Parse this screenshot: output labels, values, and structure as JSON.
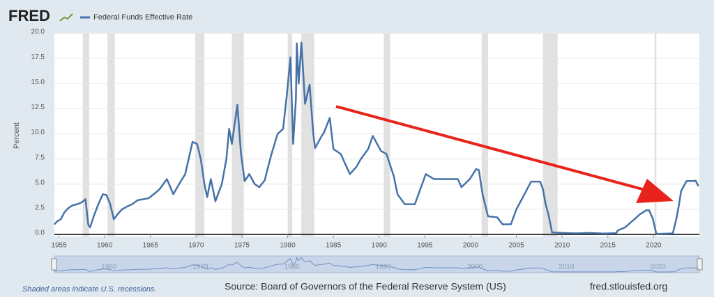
{
  "logo": "FRED",
  "chart_data": {
    "type": "line",
    "y_label": "Percent",
    "xlim": [
      1954.5,
      2025
    ],
    "xticks": [
      1955,
      1960,
      1965,
      1970,
      1975,
      1980,
      1985,
      1990,
      1995,
      2000,
      2005,
      2010,
      2015,
      2020
    ],
    "ylim": [
      0,
      20
    ],
    "yticks": [
      {
        "value": 0,
        "label": "0.0"
      },
      {
        "value": 2.5,
        "label": "2.5"
      },
      {
        "value": 5,
        "label": "5.0"
      },
      {
        "value": 7.5,
        "label": "7.5"
      },
      {
        "value": 10,
        "label": "10.0"
      },
      {
        "value": 12.5,
        "label": "12.5"
      },
      {
        "value": 15,
        "label": "15.0"
      },
      {
        "value": 17.5,
        "label": "17.5"
      },
      {
        "value": 20,
        "label": "20.0"
      }
    ],
    "grid": true,
    "recessions": [
      [
        1957.6,
        1958.3
      ],
      [
        1960.3,
        1961.1
      ],
      [
        1969.9,
        1970.9
      ],
      [
        1973.9,
        1975.2
      ],
      [
        1980.0,
        1980.5
      ],
      [
        1981.5,
        1982.9
      ],
      [
        1990.5,
        1991.2
      ],
      [
        2001.2,
        2001.9
      ],
      [
        2007.9,
        2009.5
      ],
      [
        2020.1,
        2020.3
      ]
    ],
    "series": [
      {
        "name": "Federal Funds Effective Rate",
        "color": "#4572a7",
        "x": [
          1954.5,
          1954.8,
          1955.2,
          1955.6,
          1956.0,
          1956.5,
          1957.0,
          1957.5,
          1957.9,
          1958.2,
          1958.4,
          1958.8,
          1959.3,
          1959.8,
          1960.2,
          1960.6,
          1961.0,
          1961.4,
          1961.9,
          1962.5,
          1963.0,
          1963.6,
          1964.2,
          1964.8,
          1965.5,
          1966.0,
          1966.8,
          1967.5,
          1968.0,
          1968.8,
          1969.6,
          1970.1,
          1970.5,
          1970.9,
          1971.2,
          1971.6,
          1972.1,
          1972.8,
          1973.3,
          1973.6,
          1973.9,
          1974.5,
          1974.9,
          1975.3,
          1975.8,
          1976.4,
          1976.9,
          1977.5,
          1977.8,
          1978.2,
          1978.9,
          1979.5,
          1979.9,
          1980.3,
          1980.6,
          1980.9,
          1981.0,
          1981.2,
          1981.5,
          1981.9,
          1982.4,
          1982.8,
          1983.0,
          1983.6,
          1984.0,
          1984.6,
          1985.0,
          1985.8,
          1986.8,
          1987.5,
          1988.0,
          1988.8,
          1989.3,
          1990.2,
          1990.8,
          1991.6,
          1992.0,
          1992.8,
          1993.9,
          1994.5,
          1995.1,
          1996.0,
          1997.5,
          1998.6,
          1999.0,
          1999.9,
          2000.6,
          2000.9,
          2001.3,
          2001.9,
          2002.9,
          2003.5,
          2004.4,
          2005.0,
          2006.0,
          2006.6,
          2007.6,
          2007.9,
          2008.2,
          2008.5,
          2008.9,
          2010.0,
          2011.5,
          2013.0,
          2014.5,
          2015.9,
          2016.1,
          2016.9,
          2017.5,
          2017.9,
          2018.5,
          2019.2,
          2019.5,
          2019.9,
          2020.3,
          2021.5,
          2022.1,
          2022.5,
          2022.8,
          2023.0,
          2023.3,
          2023.6,
          2024.6,
          2024.9
        ],
        "values": [
          1.0,
          1.3,
          1.5,
          2.2,
          2.6,
          2.9,
          3.0,
          3.2,
          3.5,
          1.0,
          0.7,
          1.8,
          3.0,
          4.0,
          3.9,
          3.0,
          1.5,
          2.0,
          2.5,
          2.8,
          3.0,
          3.4,
          3.5,
          3.6,
          4.1,
          4.5,
          5.5,
          4.0,
          4.8,
          6.0,
          9.2,
          9.0,
          7.5,
          5.0,
          3.7,
          5.5,
          3.3,
          5.0,
          7.5,
          10.5,
          9.0,
          12.9,
          8.0,
          5.3,
          6.0,
          5.0,
          4.7,
          5.4,
          6.5,
          7.9,
          10.0,
          10.5,
          13.8,
          17.6,
          9.0,
          13.5,
          19.0,
          15.0,
          19.1,
          13.0,
          14.9,
          10.0,
          8.6,
          9.6,
          10.2,
          11.6,
          8.5,
          8.0,
          6.0,
          6.7,
          7.5,
          8.5,
          9.8,
          8.3,
          8.0,
          5.8,
          4.0,
          3.0,
          3.0,
          4.5,
          6.0,
          5.5,
          5.5,
          5.5,
          4.7,
          5.5,
          6.5,
          6.4,
          4.0,
          1.8,
          1.7,
          1.0,
          1.0,
          2.5,
          4.2,
          5.25,
          5.25,
          4.5,
          3.0,
          2.0,
          0.2,
          0.15,
          0.1,
          0.15,
          0.09,
          0.12,
          0.4,
          0.7,
          1.2,
          1.5,
          2.0,
          2.4,
          2.4,
          1.6,
          0.05,
          0.08,
          0.1,
          1.6,
          3.1,
          4.3,
          4.8,
          5.3,
          5.33,
          4.8
        ]
      }
    ],
    "navigator_xticks": [
      1960,
      1970,
      1980,
      1990,
      2000,
      2010,
      2020
    ],
    "footnote": "Shaded areas indicate U.S. recessions.",
    "source": "Source: Board of Governors of the Federal Reserve System (US)",
    "url": "fred.stlouisfed.org"
  }
}
